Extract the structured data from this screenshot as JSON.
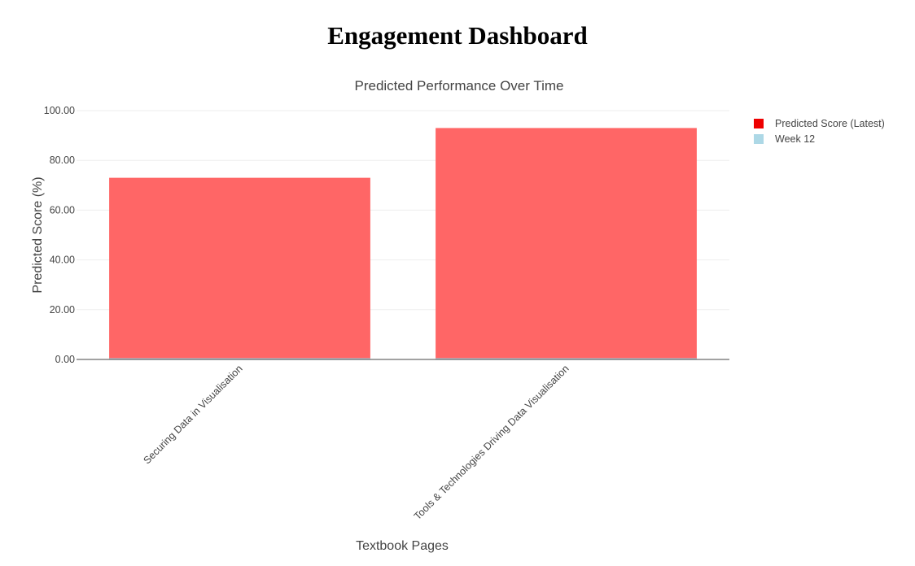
{
  "page": {
    "title": "Engagement Dashboard"
  },
  "chart_data": {
    "type": "bar",
    "title": "Predicted Performance Over Time",
    "xlabel": "Textbook Pages",
    "ylabel": "Predicted Score (%)",
    "ylim": [
      0,
      100
    ],
    "yticks": [
      0,
      20,
      40,
      60,
      80,
      100
    ],
    "ytick_labels": [
      "0.00",
      "20.00",
      "40.00",
      "60.00",
      "80.00",
      "100.00"
    ],
    "grid": true,
    "legend_position": "top-right",
    "categories": [
      "Securing Data in Visualisation",
      "Tools & Technologies Driving Data Visualisation"
    ],
    "series": [
      {
        "name": "Predicted Score (Latest)",
        "values": [
          73,
          93
        ],
        "color": "#ff6666",
        "legend_color": "#ee0000"
      },
      {
        "name": "Week 12",
        "values": [
          0.5,
          0.5
        ],
        "color": "#add8e6",
        "legend_color": "#add8e6"
      }
    ]
  }
}
